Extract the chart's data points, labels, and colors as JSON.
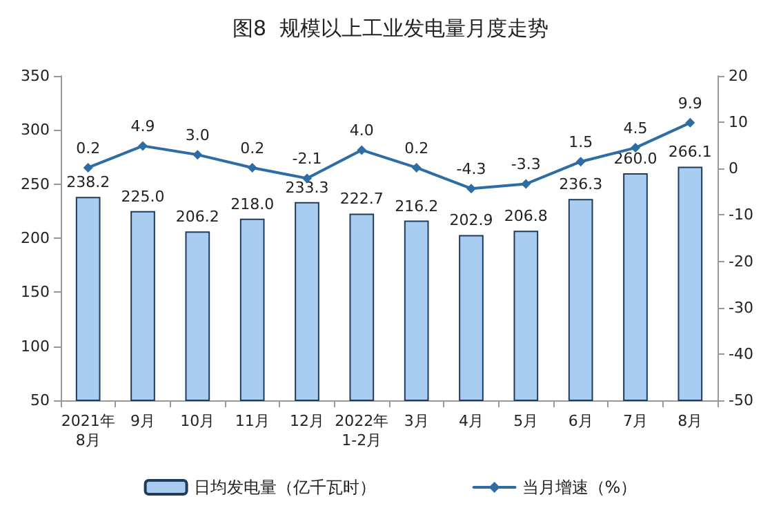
{
  "chart_data": {
    "type": "bar",
    "title": "图8  规模以上工业发电量月度走势",
    "categories": [
      "2021年\n8月",
      "9月",
      "10月",
      "11月",
      "12月",
      "2022年\n1-2月",
      "3月",
      "4月",
      "5月",
      "6月",
      "7月",
      "8月"
    ],
    "series": [
      {
        "name": "日均发电量（亿千瓦时）",
        "color": "#a9cdf0",
        "values": [
          238.2,
          225.0,
          206.2,
          218.0,
          233.3,
          222.7,
          216.2,
          202.9,
          206.8,
          236.3,
          260.0,
          266.1
        ],
        "value_labels": [
          "238.2",
          "225.0",
          "206.2",
          "218.0",
          "233.3",
          "222.7",
          "216.2",
          "202.9",
          "206.8",
          "236.3",
          "260.0",
          "266.1"
        ]
      },
      {
        "name": "当月增速（%）",
        "type": "line",
        "axis": "y2",
        "color": "#2e6da4",
        "marker": "diamond",
        "values": [
          0.2,
          4.9,
          3.0,
          0.2,
          -2.1,
          4.0,
          0.2,
          -4.3,
          -3.3,
          1.5,
          4.5,
          9.9
        ],
        "value_labels": [
          "0.2",
          "4.9",
          "3.0",
          "0.2",
          "-2.1",
          "4.0",
          "0.2",
          "-4.3",
          "-3.3",
          "1.5",
          "4.5",
          "9.9"
        ]
      }
    ],
    "ylim": [
      50,
      350
    ],
    "yticks": [
      50,
      100,
      150,
      200,
      250,
      300,
      350
    ],
    "y2lim": [
      -50,
      20
    ],
    "y2ticks": [
      -50,
      -40,
      -30,
      -20,
      -10,
      0,
      10,
      20
    ],
    "legend": "bottom"
  }
}
